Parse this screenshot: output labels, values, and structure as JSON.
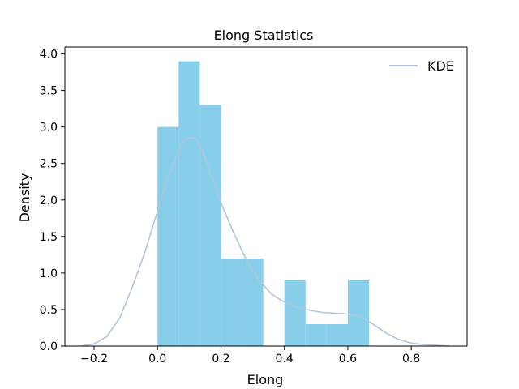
{
  "chart_data": {
    "type": "bar",
    "title": "Elong Statistics",
    "xlabel": "Elong",
    "ylabel": "Density",
    "xlim": [
      -0.292,
      0.976
    ],
    "ylim": [
      0,
      4.095
    ],
    "grid": false,
    "legend_position": "top-right",
    "bin_edges": [
      0.0,
      0.0667,
      0.1333,
      0.2,
      0.2667,
      0.3333,
      0.4,
      0.4667,
      0.5333,
      0.6,
      0.6667
    ],
    "values": [
      3.0,
      3.9,
      3.3,
      1.2,
      1.2,
      0.0,
      0.9,
      0.3,
      0.3,
      0.9
    ],
    "bar_color": "#87CEEB",
    "x_ticks": [
      -0.2,
      0.0,
      0.2,
      0.4,
      0.6,
      0.8
    ],
    "x_tick_labels": [
      "−0.2",
      "0.0",
      "0.2",
      "0.4",
      "0.6",
      "0.8"
    ],
    "y_ticks": [
      0.0,
      0.5,
      1.0,
      1.5,
      2.0,
      2.5,
      3.0,
      3.5,
      4.0
    ],
    "y_tick_labels": [
      "0.0",
      "0.5",
      "1.0",
      "1.5",
      "2.0",
      "2.5",
      "3.0",
      "3.5",
      "4.0"
    ],
    "series": [
      {
        "name": "KDE",
        "type": "line",
        "color": "#B0C4DE",
        "x": [
          -0.24,
          -0.2,
          -0.16,
          -0.12,
          -0.08,
          -0.04,
          0.0,
          0.04,
          0.08,
          0.1,
          0.12,
          0.14,
          0.16,
          0.2,
          0.24,
          0.28,
          0.32,
          0.36,
          0.4,
          0.44,
          0.48,
          0.52,
          0.56,
          0.6,
          0.64,
          0.68,
          0.72,
          0.76,
          0.8,
          0.84,
          0.88,
          0.92
        ],
        "y": [
          0.0,
          0.03,
          0.13,
          0.38,
          0.8,
          1.28,
          1.85,
          2.4,
          2.8,
          2.86,
          2.84,
          2.7,
          2.46,
          1.96,
          1.55,
          1.18,
          0.9,
          0.71,
          0.6,
          0.53,
          0.49,
          0.46,
          0.45,
          0.44,
          0.4,
          0.3,
          0.18,
          0.09,
          0.04,
          0.02,
          0.01,
          0.0
        ]
      }
    ]
  }
}
